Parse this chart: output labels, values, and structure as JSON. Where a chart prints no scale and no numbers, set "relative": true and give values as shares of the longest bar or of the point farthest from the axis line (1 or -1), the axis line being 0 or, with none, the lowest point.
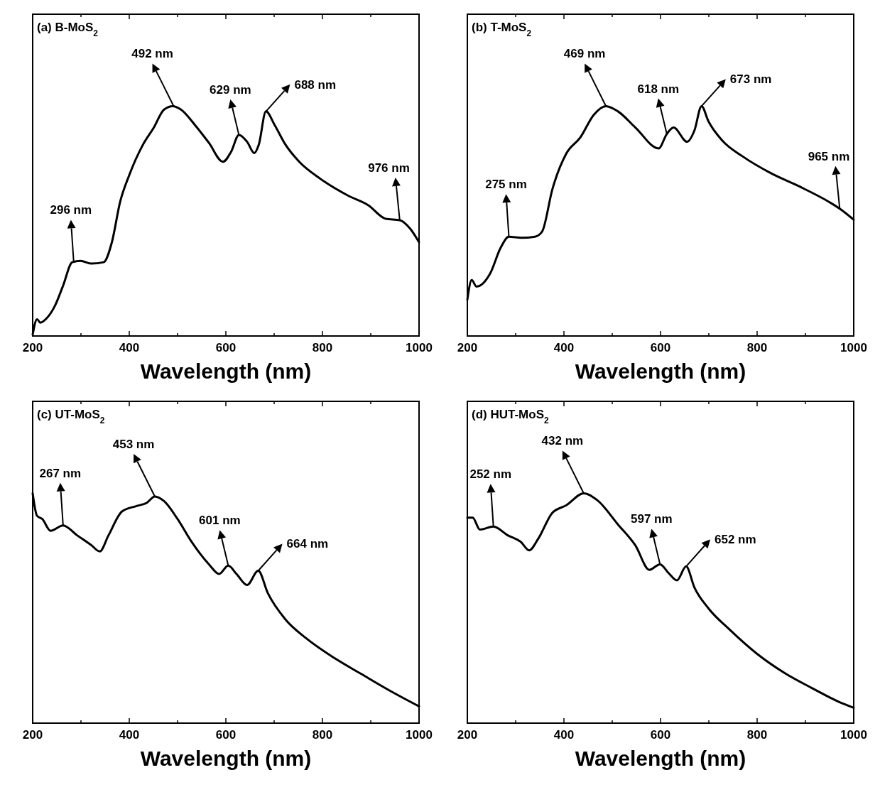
{
  "chart_data": [
    {
      "type": "line",
      "title": "(a) B-MoS$_{2}$",
      "xlabel": "Wavelength (nm)",
      "relative": true,
      "tick_labels": "x",
      "marker": "none",
      "line_style": "solid",
      "xlim": [
        200,
        1000
      ],
      "xticks": [
        200,
        {
          "value": 300,
          "label": null
        },
        400,
        {
          "value": 500,
          "label": null
        },
        600,
        {
          "value": 700,
          "label": null
        },
        800,
        {
          "value": 900,
          "label": null
        },
        1000
      ],
      "x": [
        200,
        209,
        216,
        227,
        246,
        263,
        282,
        299,
        321,
        347,
        364,
        381,
        400,
        428,
        450,
        472,
        490,
        507,
        536,
        565,
        594,
        611,
        627,
        644,
        659,
        668,
        683,
        701,
        723,
        752,
        795,
        852,
        895,
        931,
        960,
        982,
        1000
      ],
      "series": [
        {
          "color": "#000000",
          "values": [
            0.006,
            0.073,
            0.058,
            0.073,
            0.131,
            0.219,
            0.321,
            0.327,
            0.315,
            0.321,
            0.408,
            0.583,
            0.7,
            0.831,
            0.904,
            0.985,
            1.0,
            0.985,
            0.918,
            0.84,
            0.758,
            0.802,
            0.875,
            0.845,
            0.796,
            0.831,
            0.977,
            0.918,
            0.834,
            0.758,
            0.685,
            0.612,
            0.569,
            0.51,
            0.504,
            0.466,
            0.408
          ]
        }
      ],
      "annotations": [
        {
          "text": "296 nm",
          "x": 285,
          "y": 0.32
        },
        {
          "text": "492 nm",
          "x": 492,
          "y": 1.0
        },
        {
          "text": "629 nm",
          "x": 627,
          "y": 0.875
        },
        {
          "text": "688 nm",
          "x": 683,
          "y": 0.977
        },
        {
          "text": "976 nm",
          "x": 960,
          "y": 0.504
        }
      ]
    },
    {
      "type": "line",
      "title": "(b) T-MoS$_{2}$",
      "xlabel": "Wavelength (nm)",
      "relative": true,
      "tick_labels": "x",
      "marker": "none",
      "line_style": "solid",
      "xlim": [
        200,
        1000
      ],
      "xticks": [
        200,
        {
          "value": 300,
          "label": null
        },
        400,
        {
          "value": 500,
          "label": null
        },
        600,
        {
          "value": 700,
          "label": null
        },
        800,
        {
          "value": 900,
          "label": null
        },
        1000
      ],
      "x": [
        200,
        209,
        219,
        247,
        269,
        286,
        312,
        340,
        355,
        376,
        405,
        434,
        462,
        487,
        512,
        548,
        596,
        613,
        627,
        655,
        670,
        685,
        699,
        728,
        771,
        828,
        885,
        950,
        971,
        1000
      ],
      "series": [
        {
          "color": "#000000",
          "values": [
            0.158,
            0.243,
            0.215,
            0.271,
            0.384,
            0.432,
            0.427,
            0.432,
            0.455,
            0.638,
            0.794,
            0.864,
            0.963,
            1.0,
            0.977,
            0.907,
            0.816,
            0.879,
            0.907,
            0.845,
            0.893,
            1.0,
            0.935,
            0.85,
            0.78,
            0.709,
            0.653,
            0.582,
            0.554,
            0.506
          ]
        }
      ],
      "annotations": [
        {
          "text": "275 nm",
          "x": 286,
          "y": 0.432
        },
        {
          "text": "469 nm",
          "x": 487,
          "y": 1.0
        },
        {
          "text": "618 nm",
          "x": 613,
          "y": 0.879
        },
        {
          "text": "673 nm",
          "x": 685,
          "y": 1.0
        },
        {
          "text": "965 nm",
          "x": 971,
          "y": 0.554
        }
      ]
    },
    {
      "type": "line",
      "title": "(c) UT-MoS$_{2}$",
      "xlabel": "Wavelength (nm)",
      "relative": true,
      "tick_labels": "x",
      "marker": "none",
      "line_style": "solid",
      "xlim": [
        200,
        1000
      ],
      "xticks": [
        200,
        {
          "value": 300,
          "label": null
        },
        400,
        {
          "value": 500,
          "label": null
        },
        600,
        {
          "value": 700,
          "label": null
        },
        800,
        {
          "value": 900,
          "label": null
        },
        1000
      ],
      "x": [
        200,
        209,
        220,
        237,
        263,
        292,
        321,
        339,
        357,
        385,
        414,
        436,
        453,
        472,
        500,
        529,
        565,
        586,
        605,
        622,
        644,
        667,
        687,
        723,
        767,
        824,
        881,
        938,
        1000
      ],
      "series": [
        {
          "color": "#000000",
          "values": [
            1.0,
            0.902,
            0.888,
            0.837,
            0.86,
            0.817,
            0.775,
            0.747,
            0.817,
            0.921,
            0.944,
            0.958,
            0.986,
            0.966,
            0.888,
            0.789,
            0.691,
            0.649,
            0.685,
            0.649,
            0.601,
            0.663,
            0.565,
            0.452,
            0.368,
            0.284,
            0.213,
            0.143,
            0.073
          ]
        }
      ],
      "annotations": [
        {
          "text": "267 nm",
          "x": 263,
          "y": 0.86
        },
        {
          "text": "453 nm",
          "x": 453,
          "y": 0.986
        },
        {
          "text": "601 nm",
          "x": 605,
          "y": 0.685
        },
        {
          "text": "664 nm",
          "x": 667,
          "y": 0.663
        }
      ]
    },
    {
      "type": "line",
      "title": "(d) HUT-MoS$_{2}$",
      "xlabel": "Wavelength (nm)",
      "relative": true,
      "tick_labels": "x",
      "marker": "none",
      "line_style": "solid",
      "xlim": [
        200,
        1000
      ],
      "xticks": [
        200,
        {
          "value": 300,
          "label": null
        },
        400,
        {
          "value": 500,
          "label": null
        },
        600,
        {
          "value": 700,
          "label": null
        },
        800,
        {
          "value": 900,
          "label": null
        },
        1000
      ],
      "x": [
        200,
        211,
        226,
        254,
        283,
        311,
        328,
        347,
        376,
        405,
        441,
        469,
        512,
        548,
        577,
        599,
        617,
        634,
        653,
        670,
        699,
        742,
        799,
        857,
        914,
        971,
        1000
      ],
      "series": [
        {
          "color": "#000000",
          "values": [
            0.894,
            0.894,
            0.842,
            0.855,
            0.818,
            0.788,
            0.752,
            0.803,
            0.915,
            0.948,
            1.0,
            0.97,
            0.864,
            0.773,
            0.667,
            0.691,
            0.652,
            0.621,
            0.682,
            0.591,
            0.5,
            0.409,
            0.303,
            0.218,
            0.152,
            0.091,
            0.067
          ]
        }
      ],
      "annotations": [
        {
          "text": "252 nm",
          "x": 254,
          "y": 0.855
        },
        {
          "text": "432 nm",
          "x": 441,
          "y": 1.0
        },
        {
          "text": "597 nm",
          "x": 599,
          "y": 0.691
        },
        {
          "text": "652 nm",
          "x": 653,
          "y": 0.682
        }
      ]
    }
  ]
}
